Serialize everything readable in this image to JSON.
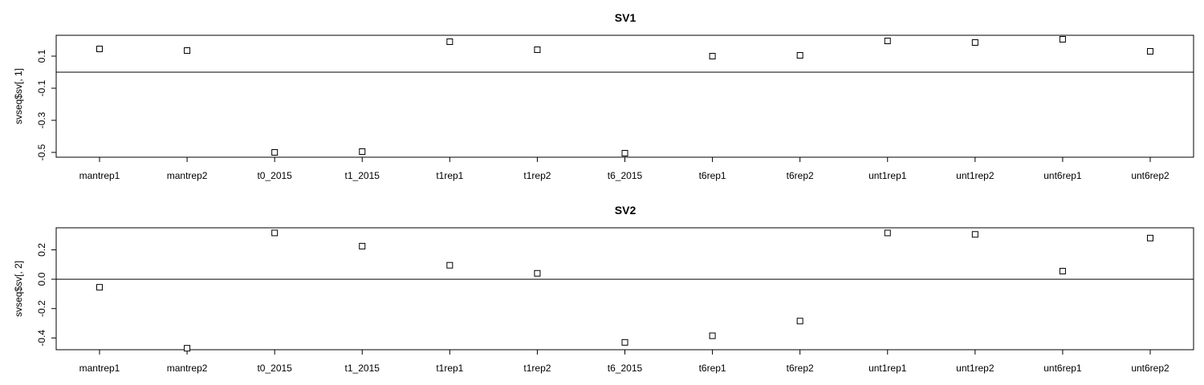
{
  "chart_data": [
    {
      "type": "scatter",
      "title": "SV1",
      "xlabel": "",
      "ylabel": "svseq$sv[, 1]",
      "categories": [
        "mantrep1",
        "mantrep2",
        "t0_2015",
        "t1_2015",
        "t1rep1",
        "t1rep2",
        "t6_2015",
        "t6rep1",
        "t6rep2",
        "unt1rep1",
        "unt1rep2",
        "unt6rep1",
        "unt6rep2"
      ],
      "values": [
        0.145,
        0.135,
        -0.5,
        -0.495,
        0.19,
        0.14,
        -0.505,
        0.1,
        0.105,
        0.195,
        0.185,
        0.205,
        0.13
      ],
      "yticks": [
        -0.5,
        -0.3,
        -0.1,
        0.1
      ],
      "ytick_labels": [
        "-0.5",
        "-0.3",
        "-0.1",
        "0.1"
      ],
      "ylim": [
        -0.53,
        0.23
      ],
      "hline": 0,
      "marker": "open-square",
      "grid": false
    },
    {
      "type": "scatter",
      "title": "SV2",
      "xlabel": "",
      "ylabel": "svseq$sv[, 2]",
      "categories": [
        "mantrep1",
        "mantrep2",
        "t0_2015",
        "t1_2015",
        "t1rep1",
        "t1rep2",
        "t6_2015",
        "t6rep1",
        "t6rep2",
        "unt1rep1",
        "unt1rep2",
        "unt6rep1",
        "unt6rep2"
      ],
      "values": [
        -0.055,
        -0.47,
        0.315,
        0.225,
        0.095,
        0.04,
        -0.43,
        -0.385,
        -0.285,
        0.315,
        0.305,
        0.055,
        0.28
      ],
      "yticks": [
        -0.4,
        -0.2,
        0.0,
        0.2
      ],
      "ytick_labels": [
        "-0.4",
        "-0.2",
        "0.0",
        "0.2"
      ],
      "ylim": [
        -0.48,
        0.35
      ],
      "hline": 0,
      "marker": "open-square",
      "grid": false
    }
  ]
}
